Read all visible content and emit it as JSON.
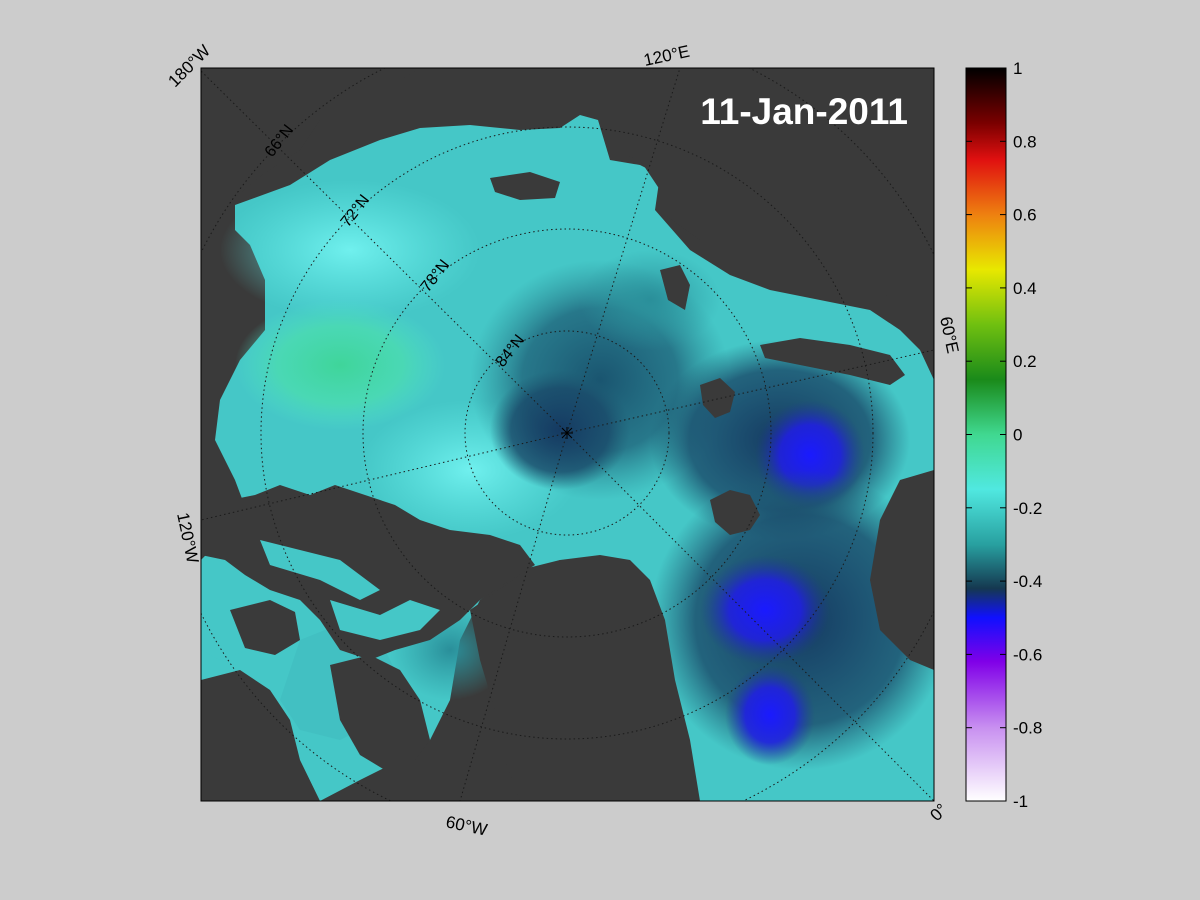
{
  "map": {
    "date": "11-Jan-2011",
    "longitude_labels": {
      "top_left": "180°W",
      "top": "120°E",
      "right": "60°E",
      "left": "120°W",
      "bottom": "60°W",
      "bottom_right": "0°"
    },
    "latitude_labels": [
      "66°N",
      "72°N",
      "78°N",
      "84°N"
    ],
    "colors": {
      "ocean": "#45c7c7",
      "land": "#3a3a3a",
      "background": "#cccccc"
    }
  },
  "colorbar": {
    "min": -1,
    "max": 1,
    "ticks": [
      "1",
      "0.8",
      "0.6",
      "0.4",
      "0.2",
      "0",
      "-0.2",
      "-0.4",
      "-0.6",
      "-0.8",
      "-1"
    ],
    "tick_values": [
      1,
      0.8,
      0.6,
      0.4,
      0.2,
      0,
      -0.2,
      -0.4,
      -0.6,
      -0.8,
      -1
    ],
    "stops": [
      {
        "value": 1.0,
        "color": "#000000"
      },
      {
        "value": 0.85,
        "color": "#7a0000"
      },
      {
        "value": 0.75,
        "color": "#e01010"
      },
      {
        "value": 0.6,
        "color": "#ee8010"
      },
      {
        "value": 0.45,
        "color": "#e8e800"
      },
      {
        "value": 0.3,
        "color": "#70c010"
      },
      {
        "value": 0.15,
        "color": "#1a8a1a"
      },
      {
        "value": 0.0,
        "color": "#40d890"
      },
      {
        "value": -0.15,
        "color": "#50e8e0"
      },
      {
        "value": -0.3,
        "color": "#28a0a0"
      },
      {
        "value": -0.42,
        "color": "#153850"
      },
      {
        "value": -0.5,
        "color": "#1010ff"
      },
      {
        "value": -0.62,
        "color": "#8000e8"
      },
      {
        "value": -0.8,
        "color": "#c890f0"
      },
      {
        "value": -1.0,
        "color": "#ffffff"
      }
    ]
  }
}
